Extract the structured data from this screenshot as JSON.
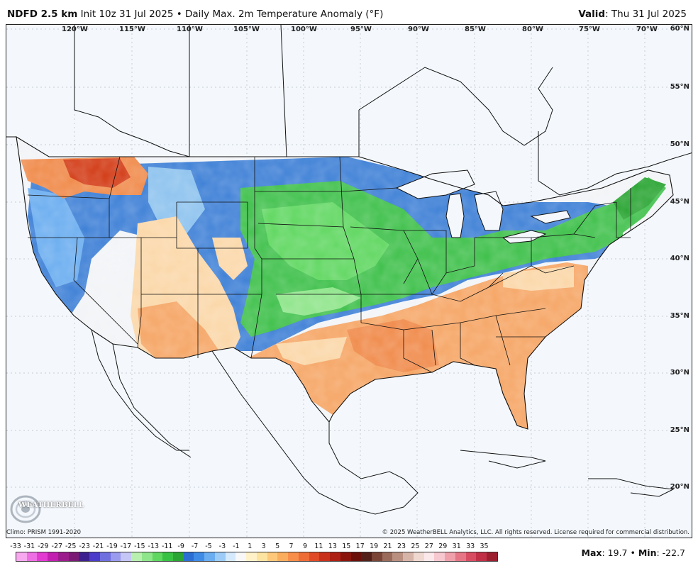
{
  "header": {
    "model": "NDFD 2.5 km",
    "init": "Init 10z 31 Jul 2025",
    "separator": "•",
    "product": "Daily Max. 2m Temperature Anomaly (°F)",
    "valid_label": "Valid",
    "valid_value": ": Thu 31 Jul 2025"
  },
  "map": {
    "region": "Continental United States",
    "longitude_labels": [
      "120°W",
      "115°W",
      "110°W",
      "105°W",
      "100°W",
      "95°W",
      "90°W",
      "85°W",
      "80°W",
      "75°W",
      "70°W"
    ],
    "latitude_labels": [
      "60°N",
      "55°N",
      "50°N",
      "45°N",
      "40°N",
      "35°N",
      "30°N",
      "25°N",
      "20°N"
    ],
    "colors": {
      "ocean": "#f4f8fd",
      "very_warm": "#d23a14",
      "warm": "#f6a564",
      "slightly_warm": "#fbd7a8",
      "near_normal": "#f2f4f7",
      "slightly_cool": "#8cc2ee",
      "cool": "#3d7fd6",
      "cooler": "#3ec04a",
      "coolest": "#28a83a"
    }
  },
  "footer": {
    "climo": "Climo: PRISM 1991-2020",
    "copyright": "© 2025 WeatherBELL Analytics, LLC. All rights reserved. License required for commercial distribution.",
    "logo_text": "WEATHERBELL",
    "logo_icon": "swirl-logo-icon"
  },
  "legend": {
    "ticks": [
      "-33",
      "-31",
      "-29",
      "-27",
      "-25",
      "-23",
      "-21",
      "-19",
      "-17",
      "-15",
      "-13",
      "-11",
      "-9",
      "-7",
      "-5",
      "-3",
      "-1",
      "1",
      "3",
      "5",
      "7",
      "9",
      "11",
      "13",
      "15",
      "17",
      "19",
      "21",
      "23",
      "25",
      "27",
      "29",
      "31",
      "33",
      "35"
    ],
    "colors": [
      "#f7a8ee",
      "#ee6ee3",
      "#e33bd2",
      "#c21fb0",
      "#9c1b8c",
      "#7a1a74",
      "#3d1f8f",
      "#4b3cc9",
      "#6f6fe0",
      "#9a9aee",
      "#c5c5f6",
      "#b9f0b0",
      "#8ee58a",
      "#5fd760",
      "#38c243",
      "#2aa533",
      "#2b6fd2",
      "#3e8ce6",
      "#6aadf0",
      "#9bcbf6",
      "#d4e9fb",
      "#f8f8f8",
      "#fff2c8",
      "#fde3a0",
      "#fdc87a",
      "#fbad5e",
      "#f78e4a",
      "#ee6c36",
      "#e04a26",
      "#c9301a",
      "#ac1f12",
      "#8a150d",
      "#6a1009",
      "#522018",
      "#7a4436",
      "#9a6a5a",
      "#b99080",
      "#d6b5a8",
      "#eed8d0",
      "#fbe8ea",
      "#f7c8cf",
      "#f0a0ab",
      "#e67585",
      "#d84c62",
      "#c02f45",
      "#9c1f30"
    ]
  },
  "stats": {
    "max_label": "Max",
    "max_value": ": 19.7",
    "sep": " • ",
    "min_label": "Min",
    "min_value": ": -22.7"
  }
}
